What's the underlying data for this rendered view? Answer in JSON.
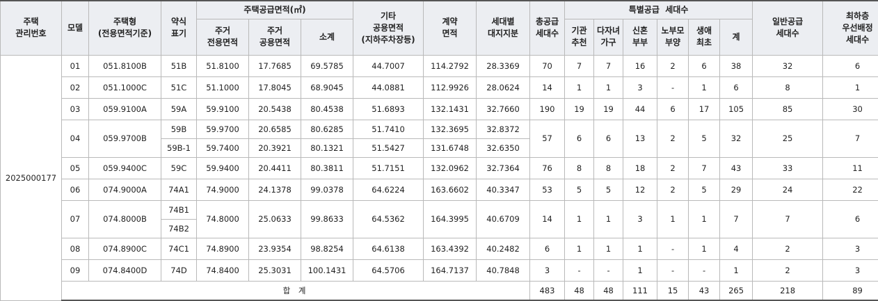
{
  "headers": {
    "mgmt_no": "주택\n관리번호",
    "model": "모델",
    "house_type": "주택형\n(전용면적기준)",
    "abbr": "약식\n표기",
    "supply_area": "주택공급면적(㎡)",
    "exclusive": "주거\n전용면적",
    "common": "주거\n공용면적",
    "subtotal": "소계",
    "other_common": "기타\n공용면적\n(지하주차장등)",
    "contract_area": "계약\n면적",
    "land_share": "세대별\n대지지분",
    "total_units": "총공급\n세대수",
    "special": "특별공급  세대수",
    "inst": "기관\n추천",
    "multi": "다자녀\n가구",
    "newlywed": "신혼\n부부",
    "elderly": "노부모\n부양",
    "first": "생애\n최초",
    "special_sum": "계",
    "general": "일반공급\n세대수",
    "lowfloor": "최하층\n우선배정\n세대수"
  },
  "mgmt_no": "2025000177",
  "rows": [
    {
      "model": "01",
      "type": "051.8100B",
      "abbr": "51B",
      "excl": "51.8100",
      "common": "17.7685",
      "sub": "69.5785",
      "other": "44.7007",
      "contract": "114.2792",
      "land": "28.3369",
      "total": "70",
      "inst": "7",
      "multi": "7",
      "newly": "16",
      "elder": "2",
      "first": "6",
      "ssum": "38",
      "general": "32",
      "low": "6"
    },
    {
      "model": "02",
      "type": "051.1000C",
      "abbr": "51C",
      "excl": "51.1000",
      "common": "17.8045",
      "sub": "68.9045",
      "other": "44.0881",
      "contract": "112.9926",
      "land": "28.0624",
      "total": "14",
      "inst": "1",
      "multi": "1",
      "newly": "3",
      "elder": "-",
      "first": "1",
      "ssum": "6",
      "general": "8",
      "low": "1"
    },
    {
      "model": "03",
      "type": "059.9100A",
      "abbr": "59A",
      "excl": "59.9100",
      "common": "20.5438",
      "sub": "80.4538",
      "other": "51.6893",
      "contract": "132.1431",
      "land": "32.7660",
      "total": "190",
      "inst": "19",
      "multi": "19",
      "newly": "44",
      "elder": "6",
      "first": "17",
      "ssum": "105",
      "general": "85",
      "low": "30"
    },
    {
      "model": "04",
      "type": "059.9700B",
      "abbr": "59B",
      "excl": "59.9700",
      "common": "20.6585",
      "sub": "80.6285",
      "other": "51.7410",
      "contract": "132.3695",
      "land": "32.8372",
      "abbr2": "59B-1",
      "excl2": "59.7400",
      "common2": "20.3921",
      "sub2": "80.1321",
      "other2": "51.5427",
      "contract2": "131.6748",
      "land2": "32.6350",
      "total": "57",
      "inst": "6",
      "multi": "6",
      "newly": "13",
      "elder": "2",
      "first": "5",
      "ssum": "32",
      "general": "25",
      "low": "7"
    },
    {
      "model": "05",
      "type": "059.9400C",
      "abbr": "59C",
      "excl": "59.9400",
      "common": "20.4411",
      "sub": "80.3811",
      "other": "51.7151",
      "contract": "132.0962",
      "land": "32.7364",
      "total": "76",
      "inst": "8",
      "multi": "8",
      "newly": "18",
      "elder": "2",
      "first": "7",
      "ssum": "43",
      "general": "33",
      "low": "11"
    },
    {
      "model": "06",
      "type": "074.9000A",
      "abbr": "74A1",
      "excl": "74.9000",
      "common": "24.1378",
      "sub": "99.0378",
      "other": "64.6224",
      "contract": "163.6602",
      "land": "40.3347",
      "total": "53",
      "inst": "5",
      "multi": "5",
      "newly": "12",
      "elder": "2",
      "first": "5",
      "ssum": "29",
      "general": "24",
      "low": "22"
    },
    {
      "model": "07",
      "type": "074.8000B",
      "abbr": "74B1",
      "abbr2": "74B2",
      "excl": "74.8000",
      "common": "25.0633",
      "sub": "99.8633",
      "other": "64.5362",
      "contract": "164.3995",
      "land": "40.6709",
      "total": "14",
      "inst": "1",
      "multi": "1",
      "newly": "3",
      "elder": "1",
      "first": "1",
      "ssum": "7",
      "general": "7",
      "low": "6"
    },
    {
      "model": "08",
      "type": "074.8900C",
      "abbr": "74C1",
      "excl": "74.8900",
      "common": "23.9354",
      "sub": "98.8254",
      "other": "64.6138",
      "contract": "163.4392",
      "land": "40.2482",
      "total": "6",
      "inst": "1",
      "multi": "1",
      "newly": "1",
      "elder": "-",
      "first": "1",
      "ssum": "4",
      "general": "2",
      "low": "3"
    },
    {
      "model": "09",
      "type": "074.8400D",
      "abbr": "74D",
      "excl": "74.8400",
      "common": "25.3031",
      "sub": "100.1431",
      "other": "64.5706",
      "contract": "164.7137",
      "land": "40.7848",
      "total": "3",
      "inst": "-",
      "multi": "-",
      "newly": "1",
      "elder": "-",
      "first": "-",
      "ssum": "1",
      "general": "2",
      "low": "3"
    }
  ],
  "sum": {
    "label": "합 계",
    "total": "483",
    "inst": "48",
    "multi": "48",
    "newly": "111",
    "elder": "15",
    "first": "43",
    "ssum": "265",
    "general": "218",
    "low": "89"
  }
}
